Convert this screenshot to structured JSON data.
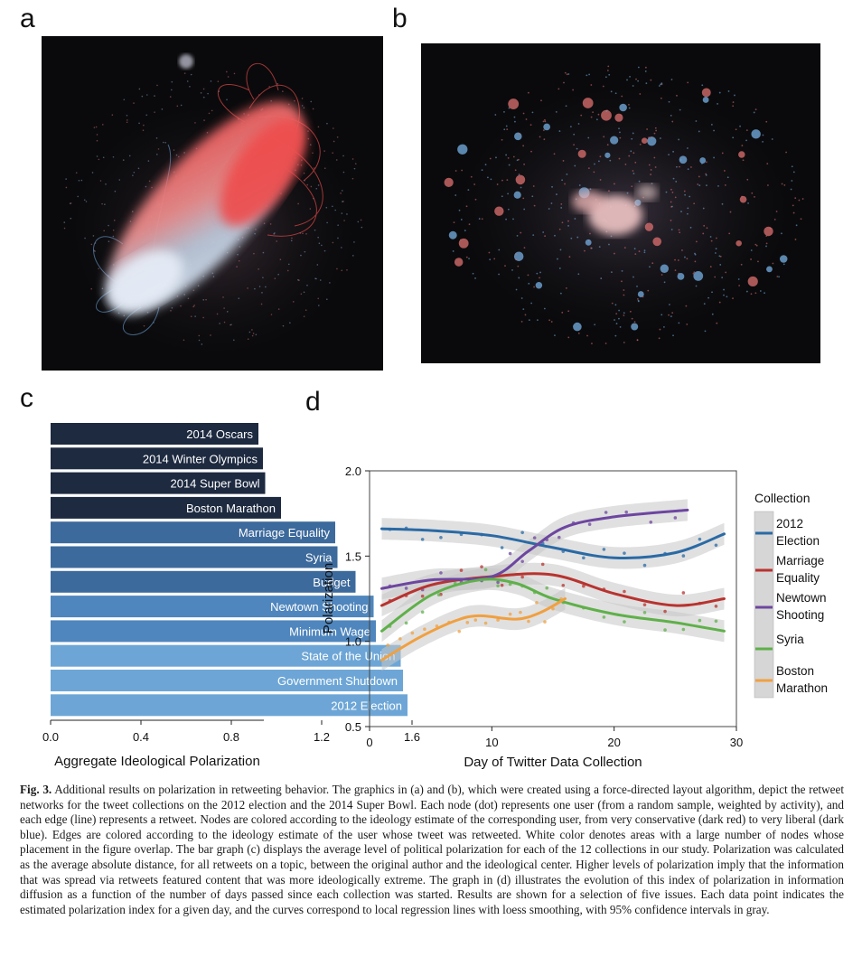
{
  "panels": {
    "a": "a",
    "b": "b",
    "c": "c",
    "d": "d"
  },
  "chart_data": [
    {
      "type": "bar",
      "orientation": "horizontal",
      "categories": [
        "2014 Oscars",
        "2014 Winter Olympics",
        "2014 Super Bowl",
        "Boston Marathon",
        "Marriage Equality",
        "Syria",
        "Budget",
        "Newtown Shooting",
        "Minimum Wage",
        "State of the Union",
        "Government Shutdown",
        "2012 Election"
      ],
      "values": [
        0.92,
        0.94,
        0.95,
        1.02,
        1.26,
        1.27,
        1.35,
        1.43,
        1.44,
        1.55,
        1.56,
        1.58
      ],
      "colors": [
        "#1d2a40",
        "#1d2a40",
        "#1d2a40",
        "#1d2a40",
        "#3d6a9c",
        "#3d6a9c",
        "#3d6a9c",
        "#4f86bd",
        "#4f86bd",
        "#6da6d6",
        "#6da6d6",
        "#6da6d6"
      ],
      "xlabel": "Aggregate Ideological Polarization",
      "xticks": [
        "0.0",
        "0.4",
        "0.8",
        "1.2",
        "1.6"
      ],
      "xlim": [
        0,
        1.6
      ]
    },
    {
      "type": "line",
      "xlabel": "Day of Twitter Data Collection",
      "ylabel": "Polarization",
      "xlim": [
        0,
        30
      ],
      "ylim": [
        0.5,
        2.0
      ],
      "xticks": [
        "0",
        "10",
        "20",
        "30"
      ],
      "yticks": [
        "0.5",
        "1.0",
        "1.5",
        "2.0"
      ],
      "legend_title": "Collection",
      "legend_position": "right",
      "series": [
        {
          "name": "2012 Election",
          "legend_lines": [
            "2012",
            "Election"
          ],
          "color": "#2a6aa5",
          "x": [
            1,
            5,
            10,
            15,
            20,
            25,
            29
          ],
          "y": [
            1.66,
            1.65,
            1.62,
            1.55,
            1.49,
            1.52,
            1.63
          ]
        },
        {
          "name": "Marriage Equality",
          "legend_lines": [
            "Marriage",
            "Equality"
          ],
          "color": "#b8332f",
          "x": [
            1,
            5,
            10,
            15,
            20,
            25,
            29
          ],
          "y": [
            1.21,
            1.33,
            1.38,
            1.39,
            1.28,
            1.21,
            1.25
          ]
        },
        {
          "name": "Newtown Shooting",
          "legend_lines": [
            "Newtown",
            "Shooting"
          ],
          "color": "#6d46a0",
          "x": [
            1,
            5,
            10,
            13,
            16,
            20,
            26
          ],
          "y": [
            1.31,
            1.36,
            1.38,
            1.53,
            1.67,
            1.73,
            1.77
          ]
        },
        {
          "name": "Syria",
          "legend_lines": [
            "Syria"
          ],
          "color": "#5fb04a",
          "x": [
            1,
            5,
            9,
            12,
            15,
            20,
            25,
            29
          ],
          "y": [
            1.06,
            1.27,
            1.36,
            1.34,
            1.25,
            1.16,
            1.11,
            1.06
          ]
        },
        {
          "name": "Boston Marathon",
          "legend_lines": [
            "Boston",
            "Marathon"
          ],
          "color": "#f0a040",
          "x": [
            1,
            4,
            7,
            9,
            12,
            14,
            16
          ],
          "y": [
            0.89,
            1.02,
            1.12,
            1.15,
            1.13,
            1.17,
            1.25
          ]
        }
      ]
    }
  ],
  "caption": {
    "label": "Fig. 3.",
    "text": "Additional results on polarization in retweeting behavior. The graphics in (a) and (b), which were created using a force-directed layout algorithm, depict the retweet networks for the tweet collections on the 2012 election and the 2014 Super Bowl. Each node (dot) represents one user (from a random sample, weighted by activity), and each edge (line) represents a retweet. Nodes are colored according to the ideology estimate of the corresponding user, from very conservative (dark red) to very liberal (dark blue). Edges are colored according to the ideology estimate of the user whose tweet was retweeted. White color denotes areas with a large number of nodes whose placement in the figure overlap. The bar graph (c) displays the average level of political polarization for each of the 12 collections in our study. Polarization was calculated as the average absolute distance, for all retweets on a topic, between the original author and the ideological center. Higher levels of polarization imply that the information that was spread via retweets featured content that was more ideologically extreme. The graph in (d) illustrates the evolution of this index of polarization in information diffusion as a function of the number of days passed since each collection was started. Results are shown for a selection of five issues. Each data point indicates the estimated polarization index for a given day, and the curves correspond to local regression lines with loess smoothing, with 95% confidence intervals in gray."
  }
}
